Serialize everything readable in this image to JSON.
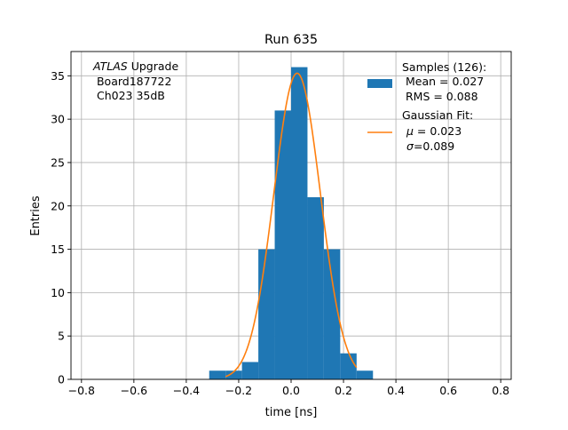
{
  "chart_data": {
    "type": "bar",
    "title": "Run 635",
    "xlabel": "time [ns]",
    "ylabel": "Entries",
    "xlim": [
      -0.84,
      0.84
    ],
    "ylim": [
      0,
      37.8
    ],
    "grid": true,
    "xticks": [
      -0.8,
      -0.6,
      -0.4,
      -0.2,
      0.0,
      0.2,
      0.4,
      0.6,
      0.8
    ],
    "xtick_labels": [
      "−0.8",
      "−0.6",
      "−0.4",
      "−0.2",
      "0.0",
      "0.2",
      "0.4",
      "0.6",
      "0.8"
    ],
    "yticks": [
      0,
      5,
      10,
      15,
      20,
      25,
      30,
      35
    ],
    "ytick_labels": [
      "0",
      "5",
      "10",
      "15",
      "20",
      "25",
      "30",
      "35"
    ],
    "bin_width": 0.0625,
    "bins": [
      {
        "x0": -0.3125,
        "value": 1
      },
      {
        "x0": -0.25,
        "value": 1
      },
      {
        "x0": -0.1875,
        "value": 2
      },
      {
        "x0": -0.125,
        "value": 15
      },
      {
        "x0": -0.0625,
        "value": 31
      },
      {
        "x0": 0.0,
        "value": 36
      },
      {
        "x0": 0.0625,
        "value": 21
      },
      {
        "x0": 0.125,
        "value": 15
      },
      {
        "x0": 0.1875,
        "value": 3
      },
      {
        "x0": 0.25,
        "value": 1
      }
    ],
    "fit": {
      "mu": 0.023,
      "sigma": 0.089,
      "amplitude": 35.3,
      "x_range": [
        -0.25,
        0.25
      ]
    },
    "bar_color": "#1f77b4",
    "fit_color": "#ff7f0e",
    "annotation": {
      "italic": "ATLAS",
      "text": " Upgrade",
      "line2": " Board187722",
      "line3": " Ch023 35dB"
    },
    "legend": {
      "placement": "top-right",
      "samples": {
        "l1": "Samples (126):",
        "l2": " Mean = 0.027",
        "l3": " RMS = 0.088"
      },
      "fit": {
        "l1": "Gaussian Fit:",
        "l2_sym": "μ",
        "l2_val": " = 0.023",
        "l3_sym": "σ",
        "l3_val": "=0.089"
      }
    }
  }
}
